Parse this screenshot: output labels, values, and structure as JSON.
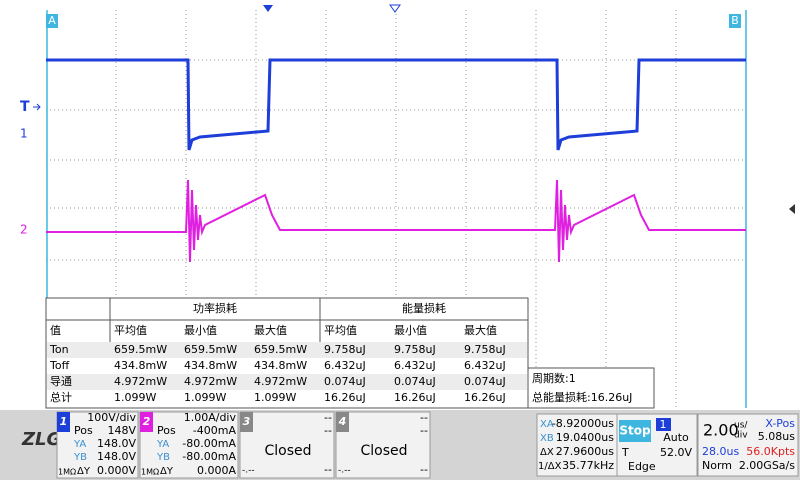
{
  "markers": {
    "a": "A",
    "b": "B",
    "trigger": "T",
    "ch1": "1",
    "ch2": "2"
  },
  "table": {
    "group_headers": [
      "功率损耗",
      "能量损耗"
    ],
    "columns": [
      "值",
      "平均值",
      "最小值",
      "最大值",
      "平均值",
      "最小值",
      "最大值"
    ],
    "rows": [
      [
        "Ton",
        "659.5mW",
        "659.5mW",
        "659.5mW",
        "9.758uJ",
        "9.758uJ",
        "9.758uJ"
      ],
      [
        "Toff",
        "434.8mW",
        "434.8mW",
        "434.8mW",
        "6.432uJ",
        "6.432uJ",
        "6.432uJ"
      ],
      [
        "导通",
        "4.972mW",
        "4.972mW",
        "4.972mW",
        "0.074uJ",
        "0.074uJ",
        "0.074uJ"
      ],
      [
        "总计",
        "1.099W",
        "1.099W",
        "1.099W",
        "16.26uJ",
        "16.26uJ",
        "16.26uJ"
      ]
    ]
  },
  "summary": {
    "period": "周期数:1",
    "total": "总能量损耗:16.26uJ"
  },
  "channels": [
    {
      "number": "1",
      "scale": "100V/div",
      "pos_label": "Pos",
      "pos": "148V",
      "ya_label": "YA",
      "ya": "148.0V",
      "yb_label": "YB",
      "yb": "148.0V",
      "coupling": "1MΩ",
      "dy_label": "ΔY",
      "dy": "0.000V"
    },
    {
      "number": "2",
      "scale": "1.00A/div",
      "pos_label": "Pos",
      "pos": "-400mA",
      "ya_label": "YA",
      "ya": "-80.00mA",
      "yb_label": "YB",
      "yb": "-80.00mA",
      "coupling": "1MΩ",
      "dy_label": "ΔY",
      "dy": "0.000A"
    },
    {
      "number": "3",
      "scale": "--",
      "pos": "--",
      "state": "Closed",
      "dy_left": "-.--",
      "dy": "--"
    },
    {
      "number": "4",
      "scale": "--",
      "pos": "--",
      "state": "Closed",
      "dy_left": "-.--",
      "dy": "--"
    }
  ],
  "cursor": {
    "xa_label": "XA",
    "xa": "-8.92000us",
    "xb_label": "XB",
    "xb": "19.0400us",
    "dx_label": "ΔX",
    "dx": "27.9600us",
    "inv_label": "1/ΔX",
    "inv": "35.77kHz"
  },
  "trigger": {
    "state": "Stop",
    "source": "1",
    "mode": "Auto",
    "level_label": "T",
    "level": "52.0V",
    "type": "Edge"
  },
  "timebase": {
    "scale": "2.00",
    "unit_top": "us/",
    "unit_bottom": "div",
    "xpos_label": "X-Pos",
    "xpos": "5.08us",
    "length": "28.0us",
    "points": "56.0Kpts",
    "acq": "Norm",
    "rate": "2.00GSa/s"
  }
}
